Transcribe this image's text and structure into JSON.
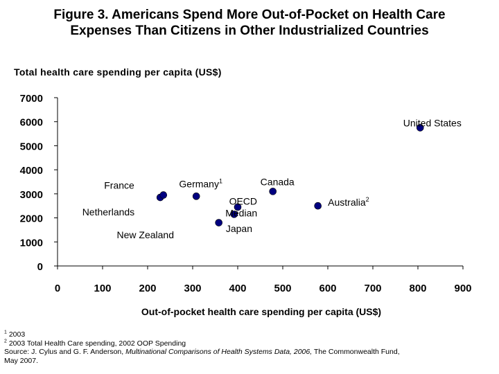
{
  "title_line1": "Figure 3. Americans Spend More Out-of-Pocket on Health Care",
  "title_line2": "Expenses Than Citizens in Other Industrialized Countries",
  "chart_data": {
    "type": "scatter",
    "title": "Figure 3. Americans Spend More Out-of-Pocket on Health Care Expenses Than Citizens in Other Industrialized Countries",
    "ylabel": "Total health care spending per capita (US$)",
    "xlabel": "Out-of-pocket health care spending per capita (US$)",
    "xlim": [
      0,
      900
    ],
    "ylim": [
      0,
      7000
    ],
    "x_ticks": [
      0,
      100,
      200,
      300,
      400,
      500,
      600,
      700,
      800,
      900
    ],
    "y_ticks": [
      0,
      1000,
      2000,
      3000,
      4000,
      5000,
      6000,
      7000
    ],
    "points": [
      {
        "x": 228,
        "y": 2850
      },
      {
        "x": 235,
        "y": 2950
      },
      {
        "x": 308,
        "y": 2900
      },
      {
        "x": 358,
        "y": 1800
      },
      {
        "x": 392,
        "y": 2150
      },
      {
        "x": 400,
        "y": 2450
      },
      {
        "x": 478,
        "y": 3100
      },
      {
        "x": 578,
        "y": 2500
      },
      {
        "x": 805,
        "y": 5750
      }
    ],
    "annotations": [
      {
        "text": "United States",
        "x": 832,
        "y": 5950
      },
      {
        "text": "France",
        "x": 137,
        "y": 3350
      },
      {
        "text": "Netherlands",
        "x": 113,
        "y": 2250
      },
      {
        "text": "New Zealand",
        "x": 195,
        "y": 1300
      },
      {
        "text": "Germany",
        "sup": "1",
        "x": 318,
        "y": 3420
      },
      {
        "text": "Canada",
        "x": 488,
        "y": 3500
      },
      {
        "text": "OECD",
        "x": 412,
        "y": 2700
      },
      {
        "text": "Median",
        "x": 408,
        "y": 2200
      },
      {
        "text": "Japan",
        "x": 403,
        "y": 1550
      },
      {
        "text": "Australia",
        "sup": "2",
        "x": 646,
        "y": 2650
      }
    ],
    "grid": false,
    "marker_color": "#000080"
  },
  "footnotes": {
    "f1_mark": "1",
    "f1_text": "2003",
    "f2_mark": "2",
    "f2_text": "2003 Total Health Care spending, 2002 OOP Spending",
    "source_prefix": "Source: J. Cylus and G. F. Anderson, ",
    "source_italic": "Multinational Comparisons of Health Systems Data, 2006,",
    "source_suffix": " The Commonwealth Fund,",
    "source_line2": "May 2007."
  }
}
